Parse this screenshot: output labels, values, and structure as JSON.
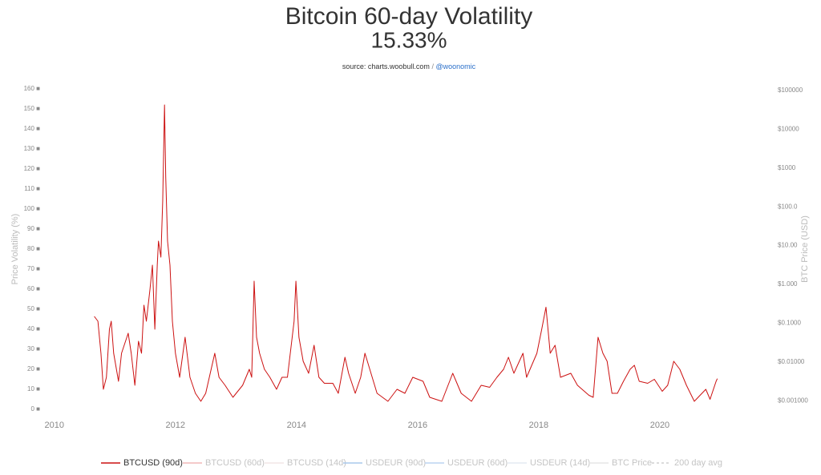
{
  "chart_data": {
    "type": "line",
    "title": "Bitcoin 60-day Volatility",
    "subtitle": "15.33%",
    "source": "source: charts.woobull.com",
    "source_separator": "/",
    "source_link": "@woonomic",
    "ylabel": "Price Volatility (%)",
    "y2label": "BTC Price (USD)",
    "xlim": [
      2009.5,
      2021.55
    ],
    "xticks": [
      2010,
      2012,
      2014,
      2016,
      2018,
      2020
    ],
    "ylim": [
      0,
      160
    ],
    "yticks": [
      {
        "value": 0,
        "label": "0 ■"
      },
      {
        "value": 10,
        "label": "10 ■"
      },
      {
        "value": 20,
        "label": "20 ■"
      },
      {
        "value": 30,
        "label": "30 ■"
      },
      {
        "value": 40,
        "label": "40 ■"
      },
      {
        "value": 50,
        "label": "50 ■"
      },
      {
        "value": 60,
        "label": "60 ■"
      },
      {
        "value": 70,
        "label": "70 ■"
      },
      {
        "value": 80,
        "label": "80 ■"
      },
      {
        "value": 90,
        "label": "90 ■"
      },
      {
        "value": 100,
        "label": "100 ■"
      },
      {
        "value": 110,
        "label": "110 ■"
      },
      {
        "value": 120,
        "label": "120 ■"
      },
      {
        "value": 130,
        "label": "130 ■"
      },
      {
        "value": 140,
        "label": "140 ■"
      },
      {
        "value": 150,
        "label": "150 ■"
      },
      {
        "value": 160,
        "label": "160 ■"
      }
    ],
    "y2_log": true,
    "y2lim": [
      0.0006,
      110000
    ],
    "y2ticks": [
      {
        "value": 0.001,
        "label": "$0.001000"
      },
      {
        "value": 0.01,
        "label": "$0.01000"
      },
      {
        "value": 0.1,
        "label": "$0.1000"
      },
      {
        "value": 1,
        "label": "$1.000"
      },
      {
        "value": 10,
        "label": "$10.00"
      },
      {
        "value": 100,
        "label": "$100.0"
      },
      {
        "value": 1000,
        "label": "$1000"
      },
      {
        "value": 10000,
        "label": "$10000"
      },
      {
        "value": 100000,
        "label": "$100000"
      }
    ],
    "legend_position": "bottom",
    "series": [
      {
        "name": "BTCUSD (90d)",
        "color": "#cc1111",
        "x": [
          2010.66,
          2010.72,
          2010.77,
          2010.81,
          2010.86,
          2010.91,
          2010.94,
          2010.98,
          2011.06,
          2011.11,
          2011.22,
          2011.27,
          2011.33,
          2011.39,
          2011.44,
          2011.48,
          2011.52,
          2011.58,
          2011.62,
          2011.66,
          2011.7,
          2011.72,
          2011.76,
          2011.79,
          2011.82,
          2011.84,
          2011.87,
          2011.91,
          2011.95,
          2012.0,
          2012.07,
          2012.16,
          2012.24,
          2012.33,
          2012.42,
          2012.5,
          2012.56,
          2012.65,
          2012.72,
          2012.82,
          2012.95,
          2013.11,
          2013.22,
          2013.26,
          2013.3,
          2013.34,
          2013.39,
          2013.47,
          2013.56,
          2013.67,
          2013.76,
          2013.85,
          2013.96,
          2013.99,
          2014.04,
          2014.11,
          2014.2,
          2014.29,
          2014.37,
          2014.46,
          2014.6,
          2014.69,
          2014.8,
          2014.86,
          2014.97,
          2015.06,
          2015.13,
          2015.21,
          2015.33,
          2015.51,
          2015.66,
          2015.79,
          2015.92,
          2016.09,
          2016.2,
          2016.4,
          2016.58,
          2016.72,
          2016.89,
          2017.05,
          2017.19,
          2017.31,
          2017.42,
          2017.5,
          2017.59,
          2017.74,
          2017.8,
          2017.97,
          2018.05,
          2018.12,
          2018.19,
          2018.27,
          2018.36,
          2018.53,
          2018.64,
          2018.83,
          2018.9,
          2018.98,
          2019.06,
          2019.13,
          2019.21,
          2019.3,
          2019.4,
          2019.51,
          2019.58,
          2019.66,
          2019.8,
          2019.91,
          2020.04,
          2020.13,
          2020.23,
          2020.33,
          2020.44,
          2020.57,
          2020.76,
          2020.83,
          2020.93,
          2020.95
        ],
        "values": [
          46.4,
          44,
          28,
          10,
          16,
          40,
          44,
          28,
          14,
          28,
          38,
          28,
          12,
          34,
          28,
          52,
          44,
          60,
          72,
          40,
          72,
          84,
          76,
          104,
          152,
          116,
          84,
          72,
          44,
          28,
          16,
          36,
          16,
          8,
          4,
          8,
          16,
          28,
          16,
          12,
          6,
          12,
          20,
          16,
          64,
          36,
          28,
          20,
          16,
          10,
          16,
          16,
          44,
          64,
          36,
          24,
          18,
          32,
          16,
          13,
          13,
          8,
          26,
          18,
          8,
          16,
          28,
          20,
          8,
          4,
          10,
          8,
          16,
          14,
          6,
          4,
          18,
          8,
          4,
          12,
          11,
          16,
          20,
          26,
          18,
          28,
          16,
          28,
          40,
          51,
          28,
          32,
          16,
          18,
          12,
          7,
          6,
          36,
          28,
          24,
          8,
          8,
          14,
          20,
          22,
          14,
          13,
          15,
          9,
          12,
          24,
          20,
          12,
          4,
          10,
          5,
          14,
          15.33
        ]
      },
      {
        "name": "BTCUSD (60d)",
        "color": "#f0b8b8",
        "hidden": true
      },
      {
        "name": "BTCUSD (14d)",
        "color": "#f2e6e6",
        "hidden": true
      },
      {
        "name": "USDEUR (90d)",
        "color": "#a8c8ec",
        "hidden": true
      },
      {
        "name": "USDEUR (60d)",
        "color": "#bcd4f0",
        "hidden": true
      },
      {
        "name": "USDEUR (14d)",
        "color": "#e4eaf2",
        "hidden": true
      },
      {
        "name": "BTC Price",
        "color": "#e6e6e6",
        "hidden": true
      },
      {
        "name": "200 day avg",
        "color": "#cfcfcf",
        "dash": true,
        "hidden": true
      }
    ]
  }
}
